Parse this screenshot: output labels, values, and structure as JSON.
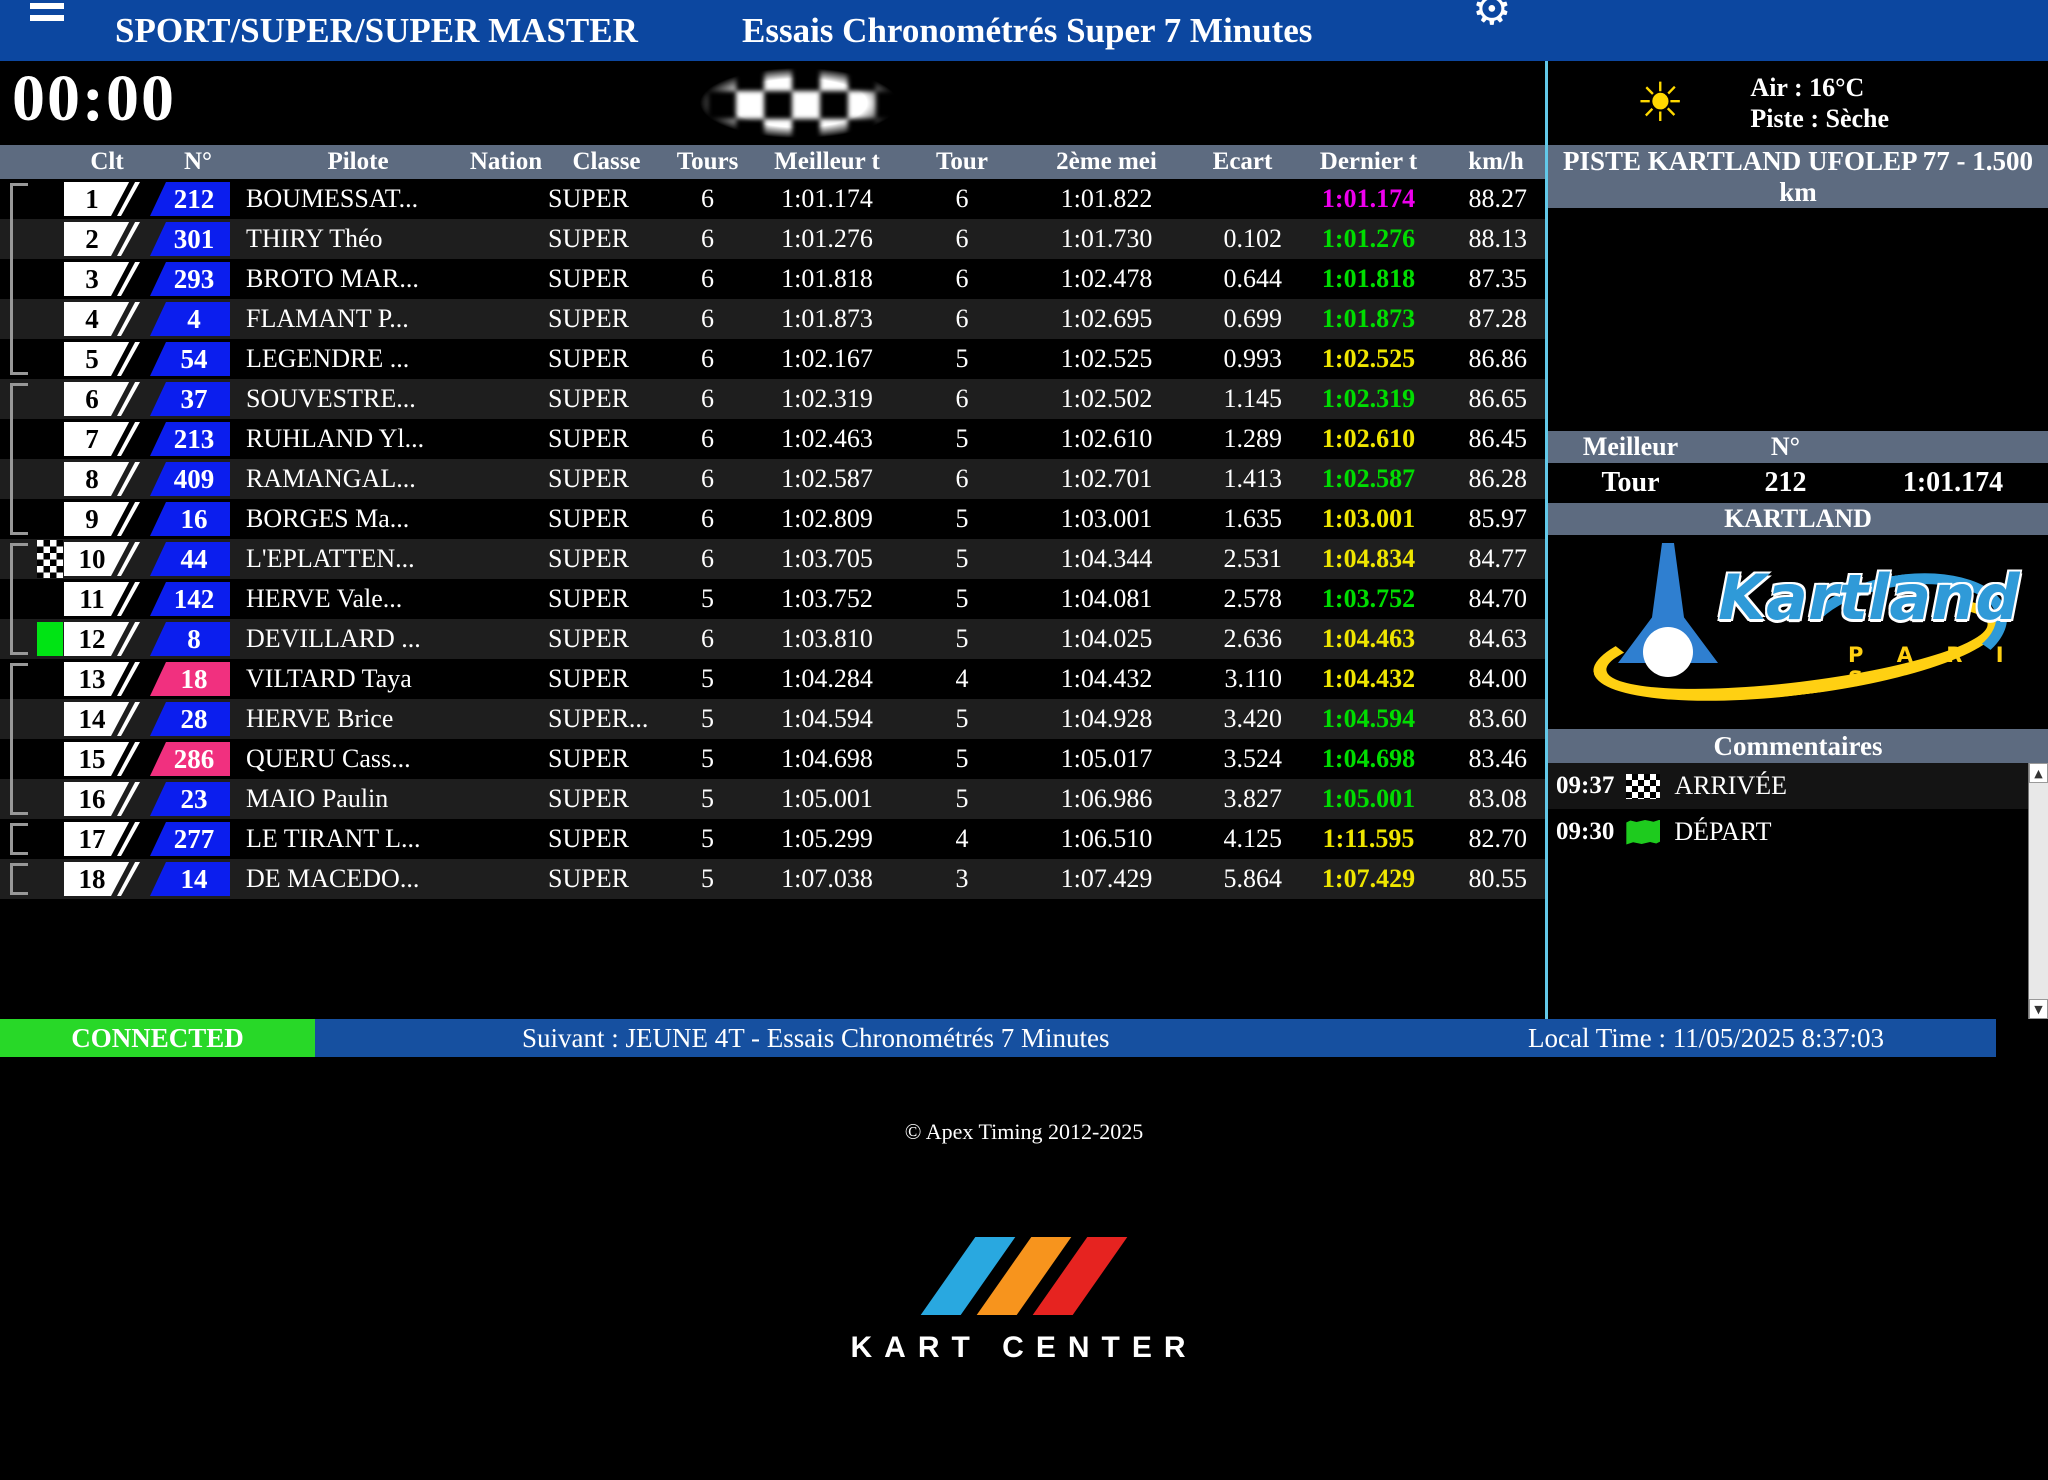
{
  "topbar": {
    "category": "SPORT/SUPER/SUPER MASTER",
    "session": "Essais Chronométrés Super 7 Minutes"
  },
  "timer": "00:00",
  "weather": {
    "air": "Air : 16°C",
    "track": "Piste : Sèche"
  },
  "track_banner": "PISTE KARTLAND UFOLEP 77 - 1.500 km",
  "best_lap": {
    "label_top": "Meilleur",
    "label_bottom": "Tour",
    "num_header": "N°",
    "kart_number": "212",
    "time": "1:01.174"
  },
  "circuit_band": "KARTLAND",
  "logo": {
    "brand": "Kartland",
    "city": "P A R I S"
  },
  "comments": {
    "title": "Commentaires",
    "items": [
      {
        "time": "09:37",
        "icon": "checkered-flag",
        "label": "ARRIVÉE"
      },
      {
        "time": "09:30",
        "icon": "green-flag",
        "label": "DÉPART"
      }
    ]
  },
  "statusbar": {
    "connection": "CONNECTED",
    "next": "Suivant : JEUNE 4T - Essais Chronométrés 7 Minutes",
    "local_time": "Local Time : 11/05/2025 8:37:03"
  },
  "footer": {
    "copyright": "© Apex Timing 2012-2025",
    "logo_text": "KART CENTER"
  },
  "table": {
    "headers": [
      "Clt",
      "N°",
      "Pilote",
      "Nation",
      "Classe",
      "Tours",
      "Meilleur t",
      "Tour",
      "2ème mei",
      "Ecart",
      "Dernier t",
      "km/h"
    ],
    "rows": [
      {
        "clt": "1",
        "num": "212",
        "num_color": "blue",
        "pilot": "BOUMESSAT...",
        "nation": "",
        "classe": "SUPER",
        "tours": "6",
        "best": "1:01.174",
        "tour": "6",
        "second": "1:01.822",
        "gap": "",
        "last": "1:01.174",
        "last_color": "magenta",
        "kmh": "88.27",
        "marker": "",
        "bracket": "top"
      },
      {
        "clt": "2",
        "num": "301",
        "num_color": "blue",
        "pilot": "THIRY Théo",
        "nation": "",
        "classe": "SUPER",
        "tours": "6",
        "best": "1:01.276",
        "tour": "6",
        "second": "1:01.730",
        "gap": "0.102",
        "last": "1:01.276",
        "last_color": "green",
        "kmh": "88.13",
        "marker": "",
        "bracket": "mid"
      },
      {
        "clt": "3",
        "num": "293",
        "num_color": "blue",
        "pilot": "BROTO MAR...",
        "nation": "",
        "classe": "SUPER",
        "tours": "6",
        "best": "1:01.818",
        "tour": "6",
        "second": "1:02.478",
        "gap": "0.644",
        "last": "1:01.818",
        "last_color": "green",
        "kmh": "87.35",
        "marker": "",
        "bracket": "mid"
      },
      {
        "clt": "4",
        "num": "4",
        "num_color": "blue",
        "pilot": "FLAMANT P...",
        "nation": "",
        "classe": "SUPER",
        "tours": "6",
        "best": "1:01.873",
        "tour": "6",
        "second": "1:02.695",
        "gap": "0.699",
        "last": "1:01.873",
        "last_color": "green",
        "kmh": "87.28",
        "marker": "",
        "bracket": "mid"
      },
      {
        "clt": "5",
        "num": "54",
        "num_color": "blue",
        "pilot": "LEGENDRE ...",
        "nation": "",
        "classe": "SUPER",
        "tours": "6",
        "best": "1:02.167",
        "tour": "5",
        "second": "1:02.525",
        "gap": "0.993",
        "last": "1:02.525",
        "last_color": "yellow",
        "kmh": "86.86",
        "marker": "",
        "bracket": "bottom"
      },
      {
        "clt": "6",
        "num": "37",
        "num_color": "blue",
        "pilot": "SOUVESTRE...",
        "nation": "",
        "classe": "SUPER",
        "tours": "6",
        "best": "1:02.319",
        "tour": "6",
        "second": "1:02.502",
        "gap": "1.145",
        "last": "1:02.319",
        "last_color": "green",
        "kmh": "86.65",
        "marker": "",
        "bracket": "top"
      },
      {
        "clt": "7",
        "num": "213",
        "num_color": "blue",
        "pilot": "RUHLAND Yl...",
        "nation": "",
        "classe": "SUPER",
        "tours": "6",
        "best": "1:02.463",
        "tour": "5",
        "second": "1:02.610",
        "gap": "1.289",
        "last": "1:02.610",
        "last_color": "yellow",
        "kmh": "86.45",
        "marker": "",
        "bracket": "mid"
      },
      {
        "clt": "8",
        "num": "409",
        "num_color": "blue",
        "pilot": "RAMANGAL...",
        "nation": "",
        "classe": "SUPER",
        "tours": "6",
        "best": "1:02.587",
        "tour": "6",
        "second": "1:02.701",
        "gap": "1.413",
        "last": "1:02.587",
        "last_color": "green",
        "kmh": "86.28",
        "marker": "",
        "bracket": "mid"
      },
      {
        "clt": "9",
        "num": "16",
        "num_color": "blue",
        "pilot": "BORGES Ma...",
        "nation": "",
        "classe": "SUPER",
        "tours": "6",
        "best": "1:02.809",
        "tour": "5",
        "second": "1:03.001",
        "gap": "1.635",
        "last": "1:03.001",
        "last_color": "yellow",
        "kmh": "85.97",
        "marker": "",
        "bracket": "bottom"
      },
      {
        "clt": "10",
        "num": "44",
        "num_color": "blue",
        "pilot": "L'EPLATTEN...",
        "nation": "",
        "classe": "SUPER",
        "tours": "6",
        "best": "1:03.705",
        "tour": "5",
        "second": "1:04.344",
        "gap": "2.531",
        "last": "1:04.834",
        "last_color": "yellow",
        "kmh": "84.77",
        "marker": "finish-flag",
        "bracket": "top"
      },
      {
        "clt": "11",
        "num": "142",
        "num_color": "blue",
        "pilot": "HERVE Vale...",
        "nation": "",
        "classe": "SUPER",
        "tours": "5",
        "best": "1:03.752",
        "tour": "5",
        "second": "1:04.081",
        "gap": "2.578",
        "last": "1:03.752",
        "last_color": "green",
        "kmh": "84.70",
        "marker": "",
        "bracket": "mid"
      },
      {
        "clt": "12",
        "num": "8",
        "num_color": "blue",
        "pilot": "DEVILLARD ...",
        "nation": "",
        "classe": "SUPER",
        "tours": "6",
        "best": "1:03.810",
        "tour": "5",
        "second": "1:04.025",
        "gap": "2.636",
        "last": "1:04.463",
        "last_color": "yellow",
        "kmh": "84.63",
        "marker": "green-box",
        "bracket": "bottom"
      },
      {
        "clt": "13",
        "num": "18",
        "num_color": "pink",
        "pilot": "VILTARD Taya",
        "nation": "",
        "classe": "SUPER",
        "tours": "5",
        "best": "1:04.284",
        "tour": "4",
        "second": "1:04.432",
        "gap": "3.110",
        "last": "1:04.432",
        "last_color": "yellow",
        "kmh": "84.00",
        "marker": "",
        "bracket": "top"
      },
      {
        "clt": "14",
        "num": "28",
        "num_color": "blue",
        "pilot": "HERVE Brice",
        "nation": "",
        "classe": "SUPER...",
        "tours": "5",
        "best": "1:04.594",
        "tour": "5",
        "second": "1:04.928",
        "gap": "3.420",
        "last": "1:04.594",
        "last_color": "green",
        "kmh": "83.60",
        "marker": "",
        "bracket": "mid"
      },
      {
        "clt": "15",
        "num": "286",
        "num_color": "pink",
        "pilot": "QUERU Cass...",
        "nation": "",
        "classe": "SUPER",
        "tours": "5",
        "best": "1:04.698",
        "tour": "5",
        "second": "1:05.017",
        "gap": "3.524",
        "last": "1:04.698",
        "last_color": "green",
        "kmh": "83.46",
        "marker": "",
        "bracket": "mid"
      },
      {
        "clt": "16",
        "num": "23",
        "num_color": "blue",
        "pilot": "MAIO Paulin",
        "nation": "",
        "classe": "SUPER",
        "tours": "5",
        "best": "1:05.001",
        "tour": "5",
        "second": "1:06.986",
        "gap": "3.827",
        "last": "1:05.001",
        "last_color": "green",
        "kmh": "83.08",
        "marker": "",
        "bracket": "bottom"
      },
      {
        "clt": "17",
        "num": "277",
        "num_color": "blue",
        "pilot": "LE TIRANT L...",
        "nation": "",
        "classe": "SUPER",
        "tours": "5",
        "best": "1:05.299",
        "tour": "4",
        "second": "1:06.510",
        "gap": "4.125",
        "last": "1:11.595",
        "last_color": "yellow",
        "kmh": "82.70",
        "marker": "",
        "bracket": "single"
      },
      {
        "clt": "18",
        "num": "14",
        "num_color": "blue",
        "pilot": "DE MACEDO...",
        "nation": "",
        "classe": "SUPER",
        "tours": "5",
        "best": "1:07.038",
        "tour": "3",
        "second": "1:07.429",
        "gap": "5.864",
        "last": "1:07.429",
        "last_color": "yellow",
        "kmh": "80.55",
        "marker": "",
        "bracket": "single"
      }
    ]
  },
  "colors": {
    "topbar_blue": "#0c47a0",
    "statusbar_blue": "#1650a0",
    "header_band": "#5d6b80",
    "kart_blue": "#0b1eee",
    "kart_pink": "#f1307f",
    "lap_best_overall": "#ee00ee",
    "lap_personal_best": "#00dd00",
    "lap_normal": "#efe600",
    "connected_green": "#28d828",
    "divider_cyan": "#62c8e8",
    "marker_green": "#00e414"
  }
}
